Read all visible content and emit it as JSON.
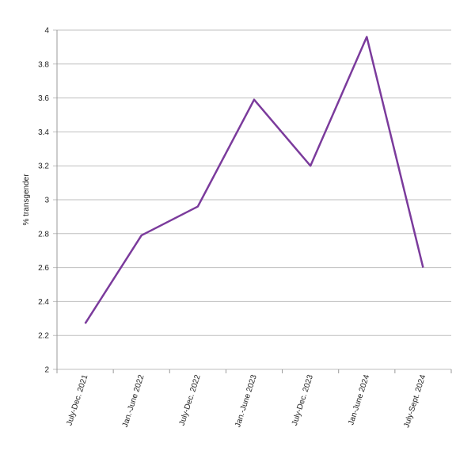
{
  "chart_data": {
    "type": "line",
    "y_label": "% transgender",
    "categories": [
      "July-Dec. 2021",
      "Jan.-June 2022",
      "July-Dec. 2022",
      "Jan.-June 2023",
      "July-Dec. 2023",
      "Jan-June 2024",
      "July-Sept. 2024"
    ],
    "values": [
      2.27,
      2.79,
      2.96,
      3.59,
      3.2,
      3.96,
      2.6
    ],
    "color": "#7b3b9c",
    "ylim": [
      2,
      4
    ],
    "yticks": [
      2,
      2.2,
      2.4,
      2.6,
      2.8,
      3,
      3.2,
      3.4,
      3.6,
      3.8,
      4
    ],
    "grid": true
  }
}
